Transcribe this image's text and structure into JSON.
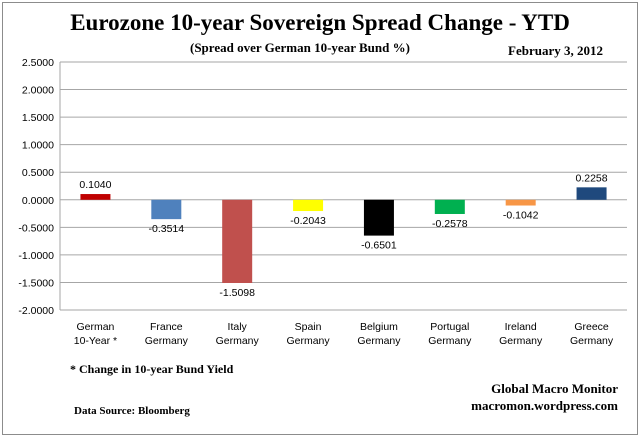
{
  "chart_data": {
    "type": "bar",
    "title": "Eurozone 10-year Sovereign Spread Change - YTD",
    "subtitle": "(Spread over German 10-year Bund %)",
    "date": "February 3, 2012",
    "categories": [
      [
        "German",
        "10-Year *"
      ],
      [
        "France",
        "Germany"
      ],
      [
        "Italy",
        "Germany"
      ],
      [
        "Spain",
        "Germany"
      ],
      [
        "Belgium",
        "Germany"
      ],
      [
        "Portugal",
        "Germany"
      ],
      [
        "Ireland",
        "Germany"
      ],
      [
        "Greece",
        "Germany"
      ]
    ],
    "values": [
      0.104,
      -0.3514,
      -1.5098,
      -0.2043,
      -0.6501,
      -0.2578,
      -0.1042,
      0.2258
    ],
    "data_labels": [
      "0.1040",
      "-0.3514",
      "-1.5098",
      "-0.2043",
      "-0.6501",
      "-0.2578",
      "-0.1042",
      "0.2258"
    ],
    "colors": [
      "#c00000",
      "#4f81bd",
      "#c0504d",
      "#ffff00",
      "#000000",
      "#00b050",
      "#f79646",
      "#1f497d"
    ],
    "ylim": [
      -2.0,
      2.5
    ],
    "yticks": [
      "2.5000",
      "2.0000",
      "1.5000",
      "1.0000",
      "0.5000",
      "0.0000",
      "-0.5000",
      "-1.0000",
      "-1.5000",
      "-2.0000"
    ],
    "grid": true,
    "xlabel": "",
    "ylabel": ""
  },
  "footnote": "* Change in 10-year Bund Yield",
  "source": "Data Source:  Bloomberg",
  "credit": {
    "name": "Global Macro Monitor",
    "site": "macromon.wordpress.com"
  }
}
